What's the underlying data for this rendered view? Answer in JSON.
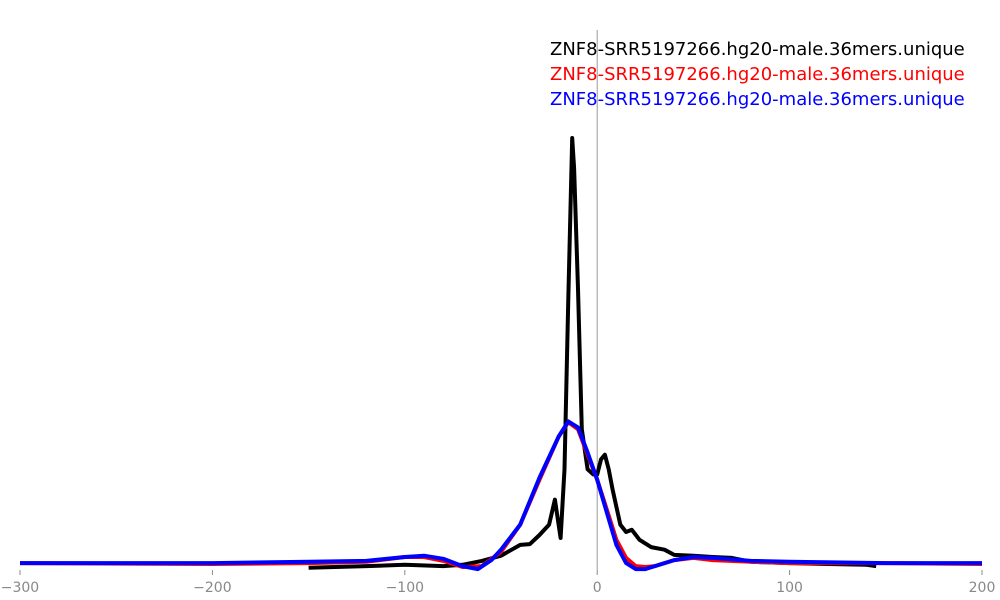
{
  "chart_data": {
    "type": "line",
    "xlim": [
      -300,
      200
    ],
    "xticks": [
      {
        "value": -300,
        "label": "−300"
      },
      {
        "value": -200,
        "label": "−200"
      },
      {
        "value": -100,
        "label": "−100"
      },
      0,
      100,
      200
    ],
    "ylim": [
      0,
      100
    ],
    "legend": "top-right",
    "series": [
      {
        "name": "ZNF8-SRR5197266.hg20-male.36mers.unique",
        "color": "#000000",
        "x": [
          -150,
          -120,
          -100,
          -80,
          -70,
          -60,
          -50,
          -40,
          -35,
          -30,
          -25,
          -22,
          -19,
          -17,
          -15,
          -13,
          -12,
          -10,
          -8,
          -5,
          -2,
          0,
          2,
          4,
          6,
          8,
          12,
          15,
          18,
          22,
          28,
          35,
          40,
          50,
          60,
          70,
          80,
          100,
          120,
          140,
          145
        ],
        "values": [
          0.5,
          0.9,
          1.2,
          0.9,
          1.2,
          2.1,
          3.3,
          5.8,
          6.0,
          8.1,
          10.5,
          16.3,
          7.4,
          23.3,
          62.8,
          100,
          93.0,
          65.1,
          32.6,
          23.3,
          22.1,
          22.1,
          25.6,
          26.7,
          23.3,
          18.6,
          10.5,
          8.8,
          9.3,
          7.0,
          5.3,
          4.7,
          3.5,
          3.3,
          3.0,
          2.8,
          1.9,
          1.6,
          1.4,
          1.2,
          0.9
        ]
      },
      {
        "name": "ZNF8-SRR5197266.hg20-male.36mers.unique",
        "color": "#ff0000",
        "x": [
          -300,
          -200,
          -150,
          -120,
          -100,
          -90,
          -80,
          -70,
          -60,
          -50,
          -40,
          -30,
          -20,
          -15,
          -10,
          -5,
          0,
          5,
          10,
          15,
          20,
          25,
          30,
          40,
          50,
          60,
          80,
          100,
          150,
          200
        ],
        "values": [
          1.6,
          1.4,
          1.6,
          1.9,
          3.0,
          3.0,
          2.1,
          0.7,
          0.9,
          4.2,
          10.5,
          20.9,
          30.9,
          34.2,
          32.6,
          26.7,
          20.9,
          14.0,
          7.0,
          2.8,
          0.9,
          0.7,
          0.9,
          2.3,
          2.8,
          2.3,
          1.9,
          1.6,
          1.6,
          1.4
        ]
      },
      {
        "name": "ZNF8-SRR5197266.hg20-male.36mers.unique",
        "color": "#0000ff",
        "x": [
          -300,
          -200,
          -150,
          -120,
          -100,
          -90,
          -80,
          -70,
          -62,
          -55,
          -50,
          -40,
          -30,
          -20,
          -15,
          -10,
          -5,
          0,
          5,
          10,
          15,
          20,
          25,
          30,
          40,
          50,
          60,
          80,
          100,
          150,
          200
        ],
        "values": [
          1.6,
          1.6,
          1.9,
          2.1,
          3.0,
          3.3,
          2.6,
          0.9,
          0.2,
          2.3,
          4.7,
          10.5,
          21.4,
          30.9,
          34.4,
          33.0,
          27.2,
          20.9,
          13.3,
          5.8,
          1.6,
          0.2,
          0.2,
          0.9,
          2.3,
          3.0,
          2.8,
          2.1,
          1.9,
          1.6,
          1.6
        ]
      }
    ]
  }
}
